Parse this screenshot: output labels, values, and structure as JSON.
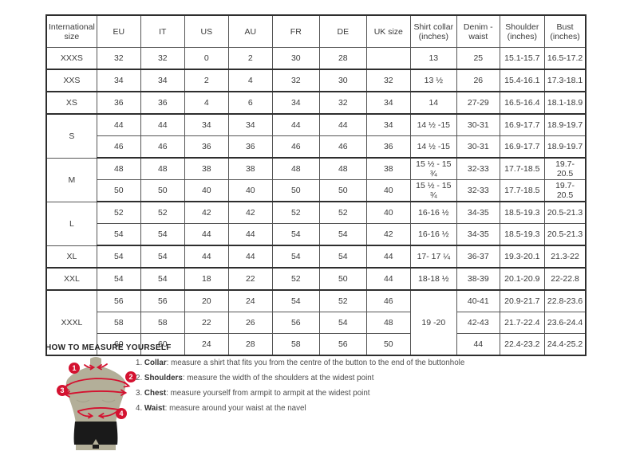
{
  "size_chart": {
    "headers": [
      "International size",
      "EU",
      "IT",
      "US",
      "AU",
      "FR",
      "DE",
      "UK size",
      "Shirt collar (inches)",
      "Denim - waist",
      "Shoulder (inches)",
      "Bust (inches)"
    ],
    "rows": [
      [
        "XXXS",
        "32",
        "32",
        "0",
        "2",
        "30",
        "28",
        "",
        "13",
        "25",
        "15.1-15.7",
        "16.5-17.2"
      ],
      [
        "XXS",
        "34",
        "34",
        "2",
        "4",
        "32",
        "30",
        "32",
        "13 ½",
        "26",
        "15.4-16.1",
        "17.3-18.1"
      ],
      [
        "XS",
        "36",
        "36",
        "4",
        "6",
        "34",
        "32",
        "34",
        "14",
        "27-29",
        "16.5-16.4",
        "18.1-18.9"
      ],
      [
        {
          "t": "S",
          "rs": 2
        },
        "44",
        "44",
        "34",
        "34",
        "44",
        "44",
        "34",
        "14 ½ -15",
        "30-31",
        "16.9-17.7",
        "18.9-19.7"
      ],
      [
        "46",
        "46",
        "36",
        "36",
        "46",
        "46",
        "36",
        "14 ½ -15",
        "30-31",
        "16.9-17.7",
        "18.9-19.7"
      ],
      [
        {
          "t": "M",
          "rs": 2
        },
        "48",
        "48",
        "38",
        "38",
        "48",
        "48",
        "38",
        "15 ½ - 15 ¾",
        "32-33",
        "17.7-18.5",
        "19.7- 20.5"
      ],
      [
        "50",
        "50",
        "40",
        "40",
        "50",
        "50",
        "40",
        "15 ½ - 15 ¾",
        "32-33",
        "17.7-18.5",
        "19.7- 20.5"
      ],
      [
        {
          "t": "L",
          "rs": 2
        },
        "52",
        "52",
        "42",
        "42",
        "52",
        "52",
        "40",
        "16-16 ½",
        "34-35",
        "18.5-19.3",
        "20.5-21.3"
      ],
      [
        "54",
        "54",
        "44",
        "44",
        "54",
        "54",
        "42",
        "16-16 ½",
        "34-35",
        "18.5-19.3",
        "20.5-21.3"
      ],
      [
        "XL",
        "54",
        "54",
        "44",
        "44",
        "54",
        "54",
        "44",
        "17- 17 ¼",
        "36-37",
        "19.3-20.1",
        "21.3-22"
      ],
      [
        "XXL",
        "54",
        "54",
        "18",
        "22",
        "52",
        "50",
        "44",
        "18-18 ½",
        "38-39",
        "20.1-20.9",
        "22-22.8"
      ],
      [
        {
          "t": "XXXL",
          "rs": 3
        },
        "56",
        "56",
        "20",
        "24",
        "54",
        "52",
        "46",
        {
          "t": "19 -20",
          "rs": 3
        },
        "40-41",
        "20.9-21.7",
        "22.8-23.6"
      ],
      [
        "58",
        "58",
        "22",
        "26",
        "56",
        "54",
        "48",
        "42-43",
        "21.7-22.4",
        "23.6-24.4"
      ],
      [
        "60",
        "60",
        "24",
        "28",
        "58",
        "56",
        "50",
        "44",
        "22.4-23.2",
        "24.4-25.2"
      ]
    ]
  },
  "how_to_measure": {
    "title": "HOW TO MEASURE YOURSELF",
    "steps": [
      {
        "num": "1.",
        "label": "Collar",
        "text": ": measure a shirt that fits you from the centre of the button to the end of the buttonhole"
      },
      {
        "num": "2.",
        "label": "Shoulders",
        "text": ": measure the width of the shoulders at the widest point"
      },
      {
        "num": "3.",
        "label": "Chest",
        "text": ": measure yourself from armpit to armpit at the widest point"
      },
      {
        "num": "4.",
        "label": "Waist",
        "text": ": measure around your waist at the navel"
      }
    ],
    "diagram_badges": [
      "1",
      "2",
      "3",
      "4"
    ]
  },
  "colors": {
    "accent_red": "#d41230",
    "mannequin_body": "#b3af99",
    "mannequin_shorts": "#1a1a1a",
    "table_border": "#555555",
    "table_border_heavy": "#2e2e2e",
    "text": "#3a3a3a"
  }
}
